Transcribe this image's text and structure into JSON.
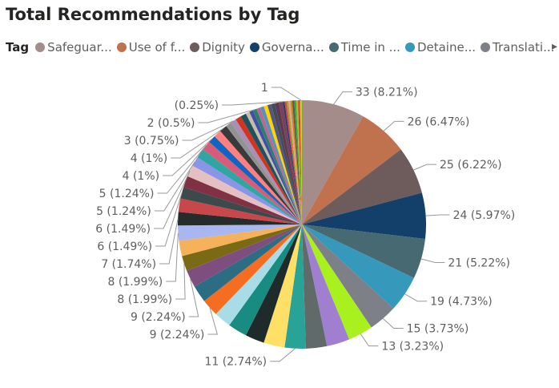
{
  "chart_data": {
    "type": "pie",
    "title": "Total Recommendations by Tag",
    "legend_title": "Tag",
    "legend_placement": "top-left",
    "legend": [
      "Safeguar...",
      "Use of f...",
      "Dignity",
      "Governa...",
      "Time in ...",
      "Detaine...",
      "Translati..."
    ],
    "values": [
      33,
      26,
      25,
      24,
      21,
      19,
      15,
      13,
      12,
      11,
      11,
      11,
      10,
      10,
      9,
      9,
      9,
      9,
      8,
      8,
      8,
      7,
      7,
      6,
      6,
      6,
      5,
      5,
      5,
      4,
      4,
      4,
      3,
      3,
      3,
      3,
      2,
      2,
      2,
      2,
      2,
      2,
      2,
      2,
      2,
      2,
      1,
      1,
      1,
      1,
      1,
      1,
      1,
      1,
      1,
      1
    ],
    "labels": {
      "0": "33 (8.21%)",
      "1": "26 (6.47%)",
      "2": "25 (6.22%)",
      "3": "24 (5.97%)",
      "4": "21 (5.22%)",
      "5": "19 (4.73%)",
      "6": "15 (3.73%)",
      "7": "13 (3.23%)",
      "10": "11 (2.74%)",
      "15": "9 (2.24%)",
      "17": "9 (2.24%)",
      "18": "8 (1.99%)",
      "20": "8 (1.99%)",
      "21": "7 (1.74%)",
      "23": "6 (1.49%)",
      "25": "6 (1.49%)",
      "26": "5 (1.24%)",
      "28": "5 (1.24%)",
      "29": "4 (1%)",
      "31": "4 (1%)",
      "33": "3 (0.75%)",
      "38": "2 (0.5%)",
      "46": "(0.25%)",
      "55": "1"
    },
    "colors": [
      "#A48C8A",
      "#C0714D",
      "#6E5B5B",
      "#12406A",
      "#466972",
      "#3699BC",
      "#7D8086",
      "#A8F01E",
      "#A07FD1",
      "#606B69",
      "#29A395",
      "#FFE066",
      "#1F2A2A",
      "#198C82",
      "#A8DDE8",
      "#F46D21",
      "#2B6D82",
      "#7E4E7E",
      "#7A6A14",
      "#F5B25A",
      "#A9B7F0",
      "#262C2C",
      "#C7474B",
      "#3C4A4C",
      "#803244",
      "#E4C0C3",
      "#8A95E8",
      "#2FA6A2",
      "#D65C78",
      "#0E66C2",
      "#FF8080",
      "#3A3A3A",
      "#8F9491",
      "#A88FB5",
      "#D4331E",
      "#1E5260",
      "#C8BBAA",
      "#3F4FA8",
      "#2C7E6F",
      "#B56B8B",
      "#5B8FBF",
      "#FFD400",
      "#56567A",
      "#444B5E",
      "#5E3A4A",
      "#78425E",
      "#223D70",
      "#D44",
      "#9A2",
      "#E9A",
      "#C80",
      "#556",
      "#3A3",
      "#AB3",
      "#E33",
      "#AD2"
    ]
  }
}
